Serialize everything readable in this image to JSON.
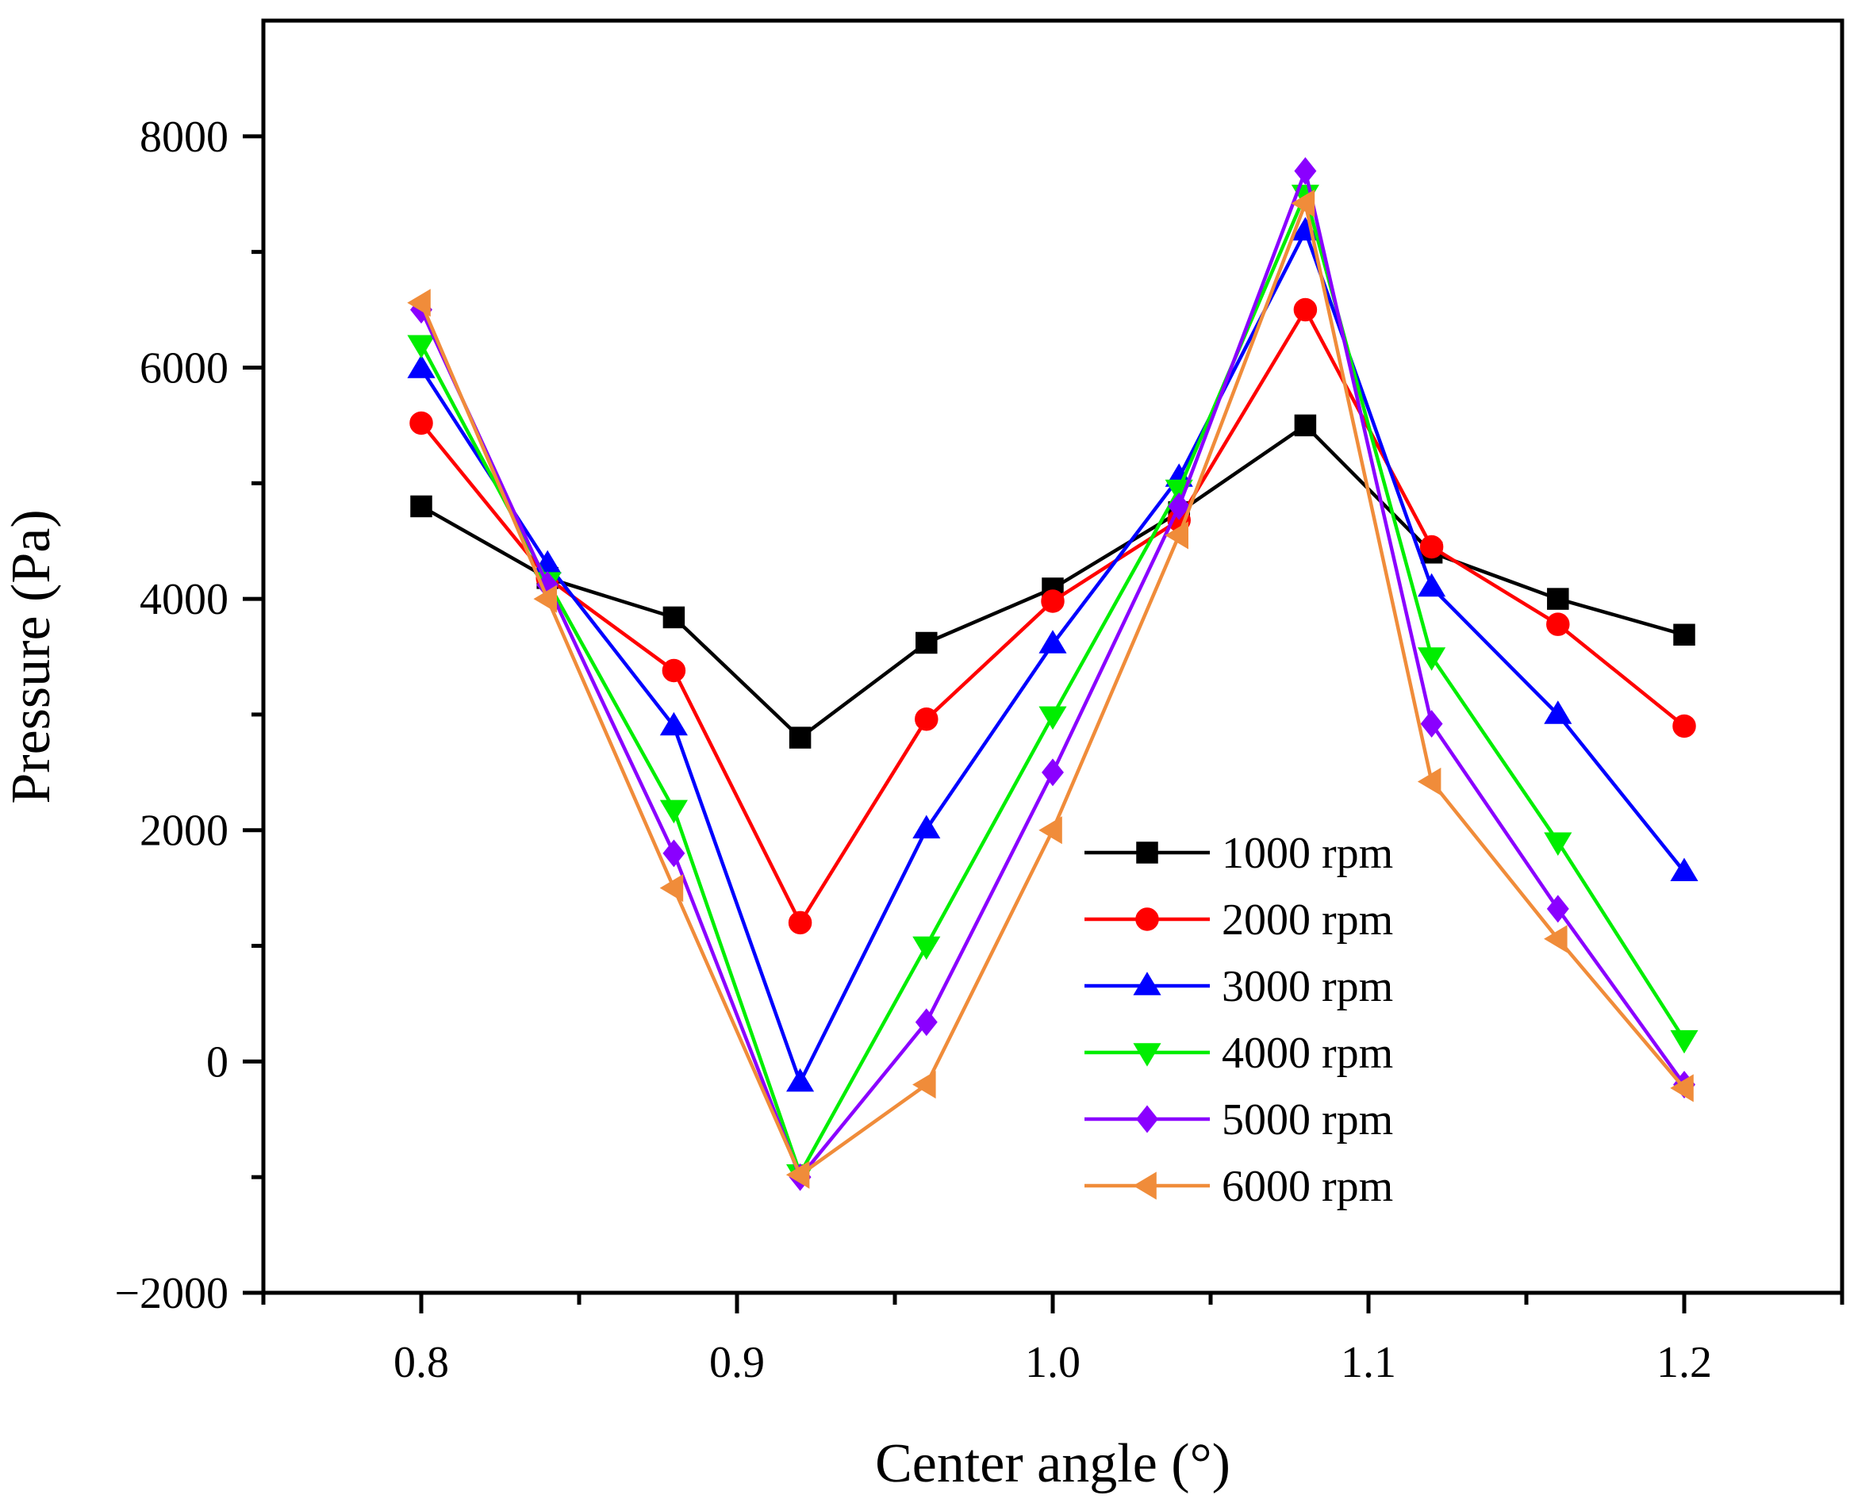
{
  "chart_data": {
    "type": "line",
    "title": "",
    "xlabel": "Center angle (°)",
    "ylabel": "Pressure (Pa)",
    "xlim": [
      0.75,
      1.25
    ],
    "ylim": [
      -2000,
      9000
    ],
    "x_ticks": [
      0.8,
      0.9,
      1.0,
      1.1,
      1.2
    ],
    "x_tick_labels": [
      "0.8",
      "0.9",
      "1.0",
      "1.1",
      "1.2"
    ],
    "x_minor_ticks": [
      0.75,
      0.85,
      0.95,
      1.05,
      1.15,
      1.25
    ],
    "y_ticks": [
      -2000,
      0,
      2000,
      4000,
      6000,
      8000
    ],
    "y_tick_labels": [
      "−2000",
      "0",
      "2000",
      "4000",
      "6000",
      "8000"
    ],
    "y_minor_ticks": [
      -1000,
      1000,
      3000,
      5000,
      7000
    ],
    "grid": false,
    "legend_position": "center-right",
    "x": [
      0.8,
      0.84,
      0.88,
      0.92,
      0.96,
      1.0,
      1.04,
      1.08,
      1.12,
      1.16,
      1.2
    ],
    "series": [
      {
        "name": "1000 rpm",
        "color": "#000000",
        "marker": "square",
        "values": [
          4800,
          4180,
          3840,
          2800,
          3620,
          4090,
          4750,
          5500,
          4400,
          4000,
          3690
        ]
      },
      {
        "name": "2000 rpm",
        "color": "#ff0000",
        "marker": "circle",
        "values": [
          5520,
          4180,
          3380,
          1200,
          2960,
          3980,
          4680,
          6500,
          4450,
          3780,
          2900
        ]
      },
      {
        "name": "3000 rpm",
        "color": "#0000ff",
        "marker": "triangle-up",
        "values": [
          5990,
          4300,
          2900,
          -180,
          2010,
          3610,
          5050,
          7180,
          4100,
          3000,
          1640
        ]
      },
      {
        "name": "4000 rpm",
        "color": "#00ee00",
        "marker": "triangle-down",
        "values": [
          6200,
          4150,
          2180,
          -970,
          1000,
          2990,
          4950,
          7500,
          3500,
          1900,
          190
        ]
      },
      {
        "name": "5000 rpm",
        "color": "#8a00ff",
        "marker": "diamond",
        "values": [
          6500,
          4120,
          1800,
          -1000,
          340,
          2500,
          4800,
          7700,
          2920,
          1320,
          -200
        ]
      },
      {
        "name": "6000 rpm",
        "color": "#f08c3a",
        "marker": "triangle-left",
        "values": [
          6560,
          4000,
          1500,
          -980,
          -200,
          2000,
          4550,
          7420,
          2420,
          1060,
          -230
        ]
      }
    ]
  }
}
